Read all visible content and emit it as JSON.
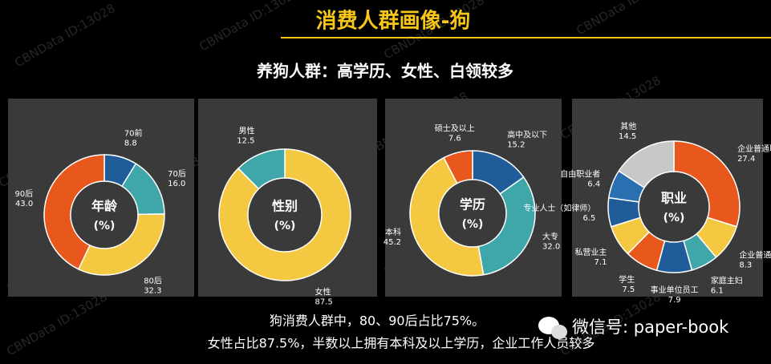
{
  "title": "消费人群画像-狗",
  "subtitle": "养狗人群：高学历、女性、白领较多",
  "notes": [
    "狗消费人群中，80、90后占比75%。",
    "女性占比87.5%，半数以上拥有本科及以上学历，企业工作人员较多"
  ],
  "wechat": "微信号: paper-book",
  "watermark": "CBNData ID:13028",
  "chart_data": [
    {
      "type": "pie",
      "title": "年龄",
      "unit": "(%)",
      "categories": [
        "70前",
        "70后",
        "80后",
        "90后"
      ],
      "values": [
        8.8,
        16.0,
        32.3,
        43.0
      ],
      "value_labels": [
        "8.8",
        "16.0",
        "32.3",
        "43.0"
      ],
      "colors": [
        "#1f5c99",
        "#3fa6a9",
        "#f5c842",
        "#e8571c"
      ]
    },
    {
      "type": "pie",
      "title": "性别",
      "unit": "(%)",
      "categories": [
        "女性",
        "男性"
      ],
      "values": [
        87.5,
        12.5
      ],
      "colors": [
        "#f5c842",
        "#3fa6a9"
      ]
    },
    {
      "type": "pie",
      "title": "学历",
      "unit": "(%)",
      "categories": [
        "高中及以下",
        "大专",
        "本科",
        "硕士及以上"
      ],
      "values": [
        15.2,
        32.0,
        45.2,
        7.6
      ],
      "value_labels": [
        "15.2",
        "32.0",
        "45.2",
        "7.6"
      ],
      "colors": [
        "#1f5c99",
        "#3fa6a9",
        "#f5c842",
        "#e8571c"
      ]
    },
    {
      "type": "pie",
      "title": "职业",
      "unit": "(%)",
      "categories": [
        "企业普通职员",
        "企业普通管理层",
        "家庭主妇",
        "事业单位员工",
        "学生",
        "私营业主",
        "专业人士（如律师）",
        "自由职业者",
        "其他"
      ],
      "values": [
        27.4,
        8.3,
        6.1,
        7.9,
        7.5,
        7.1,
        6.5,
        6.4,
        14.5
      ],
      "colors": [
        "#e8571c",
        "#f5c842",
        "#3fa6a9",
        "#1f5c99",
        "#e8571c",
        "#f5c842",
        "#1f5c99",
        "#2a6fb0",
        "#c8c8c8"
      ]
    }
  ]
}
